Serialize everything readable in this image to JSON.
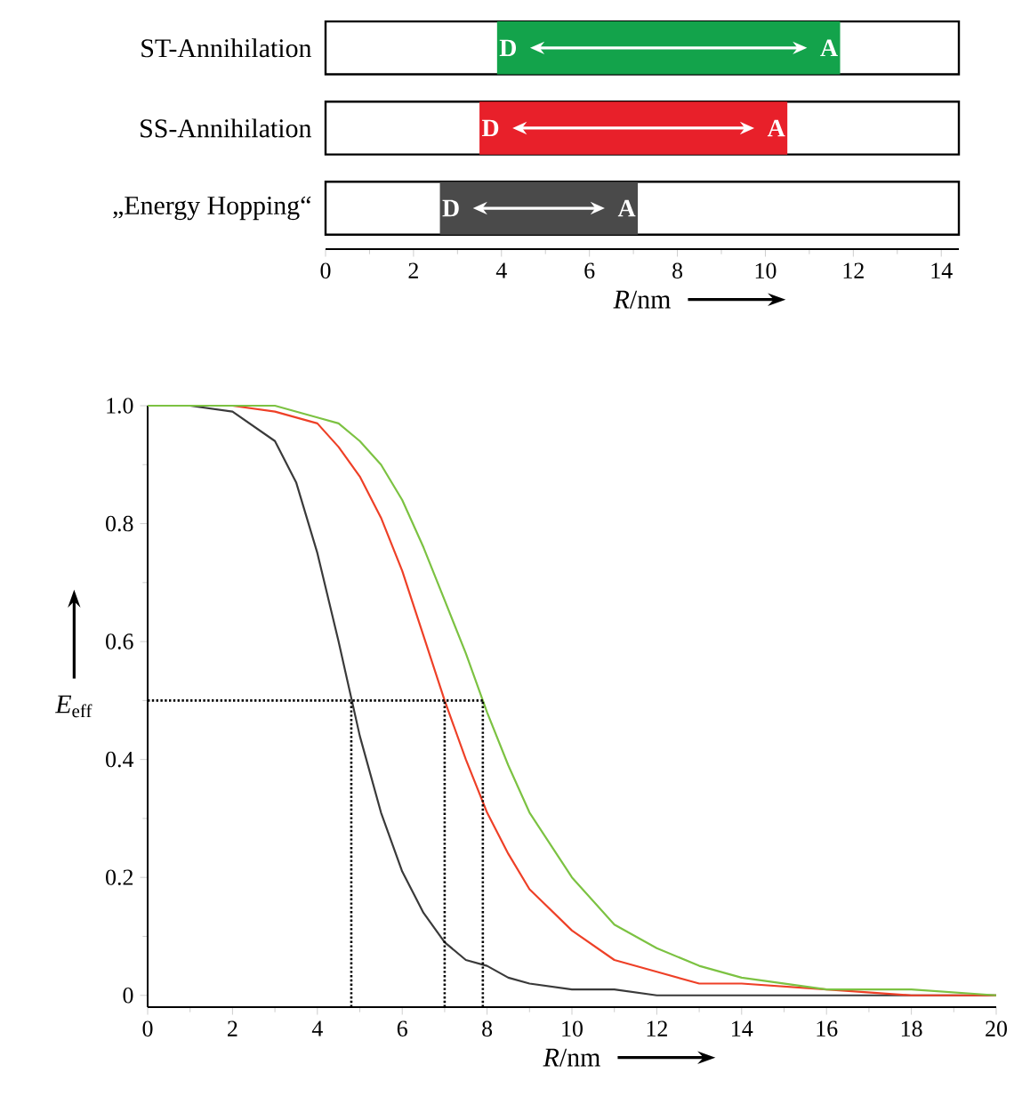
{
  "chart_data": [
    {
      "type": "bar",
      "orientation": "horizontal",
      "categories": [
        "ST-Annihilation",
        "SS-Annihilation",
        "„Energy Hopping“"
      ],
      "base": [
        3.9,
        3.5,
        2.6
      ],
      "values": [
        7.8,
        7.0,
        4.5
      ],
      "colors": [
        "#13a34b",
        "#e8202a",
        "#4a4a4a"
      ],
      "xlim": [
        0,
        14.4
      ],
      "xticks": [
        0,
        2,
        4,
        6,
        8,
        10,
        12,
        14
      ],
      "xlabel": "*R*/nm",
      "annotations": [
        {
          "text": "D",
          "x": 3.9,
          "y": "ST-Annihilation"
        },
        {
          "text": "A",
          "x": 11.7,
          "y": "ST-Annihilation"
        },
        {
          "text": "D",
          "x": 3.5,
          "y": "SS-Annihilation"
        },
        {
          "text": "A",
          "x": 10.5,
          "y": "SS-Annihilation"
        },
        {
          "text": "D",
          "x": 2.6,
          "y": "„Energy Hopping“"
        },
        {
          "text": "A",
          "x": 7.1,
          "y": "„Energy Hopping“"
        }
      ]
    },
    {
      "type": "line",
      "x": [
        0,
        1,
        2,
        3,
        3.5,
        4,
        4.5,
        5,
        5.5,
        6,
        6.5,
        7,
        7.5,
        8,
        8.5,
        9,
        10,
        11,
        12,
        13,
        14,
        16,
        18,
        20
      ],
      "series": [
        {
          "color": "#3a3a3a",
          "values": [
            1,
            1,
            0.99,
            0.94,
            0.87,
            0.75,
            0.6,
            0.44,
            0.31,
            0.21,
            0.14,
            0.09,
            0.06,
            0.05,
            0.03,
            0.02,
            0.01,
            0.01,
            0,
            0,
            0,
            0,
            0,
            0
          ]
        },
        {
          "color": "#ee4027",
          "values": [
            1,
            1,
            1,
            0.99,
            0.98,
            0.97,
            0.93,
            0.88,
            0.81,
            0.72,
            0.61,
            0.5,
            0.4,
            0.31,
            0.24,
            0.18,
            0.11,
            0.06,
            0.04,
            0.02,
            0.02,
            0.01,
            0,
            0
          ]
        },
        {
          "color": "#7cc242",
          "values": [
            1,
            1,
            1,
            1,
            0.99,
            0.98,
            0.97,
            0.94,
            0.9,
            0.84,
            0.76,
            0.67,
            0.58,
            0.48,
            0.39,
            0.31,
            0.2,
            0.12,
            0.08,
            0.05,
            0.03,
            0.01,
            0.01,
            0
          ]
        }
      ],
      "xlim": [
        0,
        20
      ],
      "ylim": [
        -0.02,
        1.0
      ],
      "xticks": [
        0,
        2,
        4,
        6,
        8,
        10,
        12,
        14,
        16,
        18,
        20
      ],
      "yticks": [
        0,
        0.2,
        0.4,
        0.6,
        0.8,
        {
          "value": 1.0,
          "label": "1.0"
        }
      ],
      "xlabel": "*R*/nm",
      "ylabel": "*E*$_{eff}$",
      "line_style": "solid",
      "ref_lines": [
        {
          "axis": "y",
          "value": 0.5,
          "color": "#000000",
          "line_style": "dotted"
        },
        {
          "axis": "x",
          "value": 4.8,
          "color": "#000000",
          "line_style": "dotted"
        },
        {
          "axis": "x",
          "value": 7.0,
          "color": "#000000",
          "line_style": "dotted"
        },
        {
          "axis": "x",
          "value": 7.9,
          "color": "#000000",
          "line_style": "dotted"
        }
      ]
    }
  ]
}
